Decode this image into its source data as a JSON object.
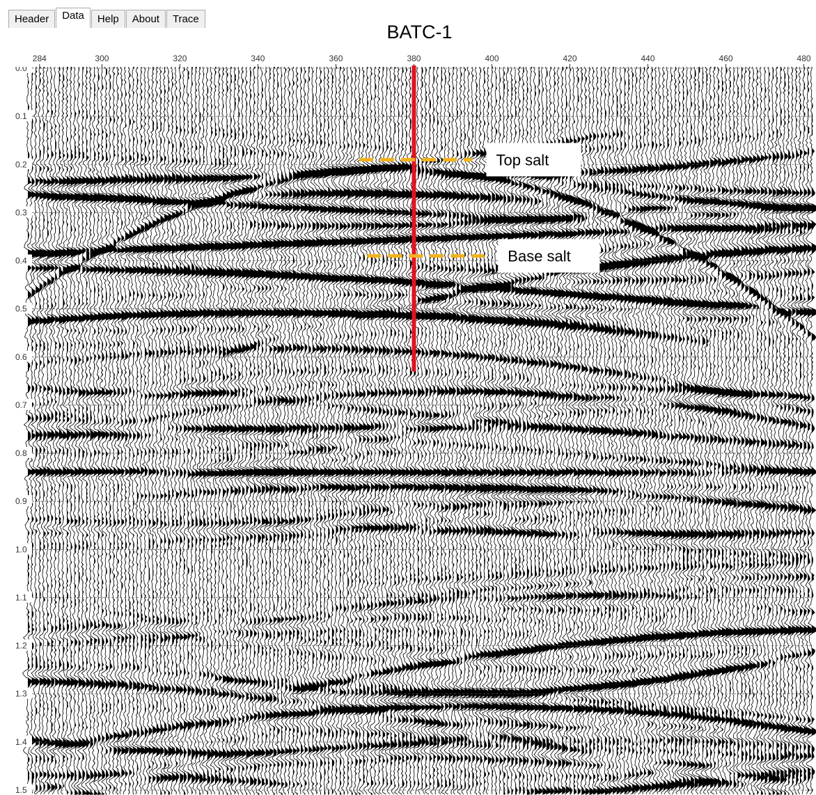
{
  "tabs": [
    "Header",
    "Data",
    "Help",
    "About",
    "Trace"
  ],
  "active_tab": "Data",
  "chart_data": {
    "type": "seismic",
    "title": "BATC-1",
    "xlim": [
      281,
      482.4
    ],
    "ylim": [
      0,
      1.5
    ],
    "xticks": [
      284,
      300,
      320,
      340,
      360,
      380,
      400,
      420,
      440,
      460,
      480
    ],
    "yticks": [
      {
        "value": 0,
        "label": "0.0"
      },
      0.1,
      0.2,
      0.3,
      0.4,
      0.5,
      0.6,
      0.7,
      0.8,
      0.9,
      {
        "value": 1,
        "label": "1.0"
      },
      1.1,
      1.2,
      1.3,
      1.4,
      1.5
    ],
    "well": {
      "trace": 380,
      "depth": [
        0,
        0.63
      ],
      "color": "#e0141e"
    },
    "horizons": [
      {
        "name": "Top salt",
        "traces": [
          366,
          395
        ],
        "time": 0.19,
        "color": "#f2b21e"
      },
      {
        "name": "Base salt",
        "traces": [
          368,
          398
        ],
        "time": 0.39,
        "color": "#f2b21e"
      }
    ]
  }
}
